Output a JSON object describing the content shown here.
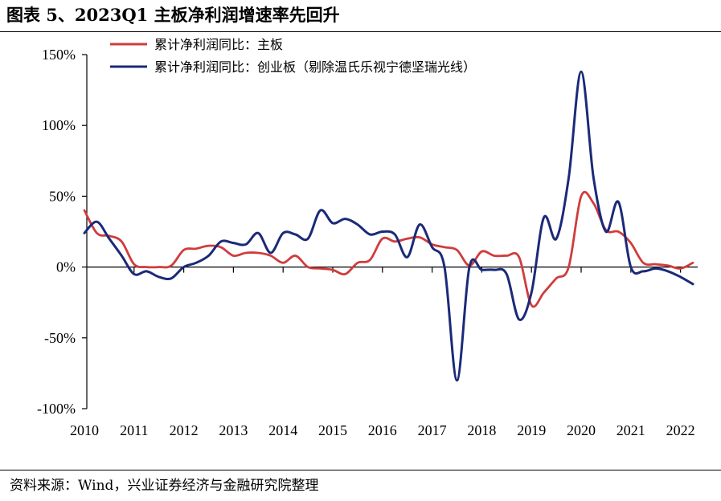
{
  "figure": {
    "title": "图表 5、2023Q1 主板净利润增速率先回升",
    "source": "资料来源：Wind，兴业证券经济与金融研究院整理"
  },
  "chart_data": {
    "type": "line",
    "title": "",
    "xlabel": "",
    "ylabel": "",
    "x_ticks": [
      "2010",
      "2011",
      "2012",
      "2013",
      "2014",
      "2015",
      "2016",
      "2017",
      "2018",
      "2019",
      "2020",
      "2021",
      "2022"
    ],
    "y_ticks": [
      "150%",
      "100%",
      "50%",
      "0%",
      "-50%",
      "-100%"
    ],
    "y_tick_values": [
      150,
      100,
      50,
      0,
      -50,
      -100
    ],
    "ylim": [
      -100,
      150
    ],
    "xlim": [
      2010,
      2023.2
    ],
    "grid": false,
    "legend_position": "top",
    "series": [
      {
        "name": "累计净利润同比：主板",
        "color": "#d03c3c",
        "x": [
          2010.0,
          2010.25,
          2010.5,
          2010.75,
          2011.0,
          2011.25,
          2011.5,
          2011.75,
          2012.0,
          2012.25,
          2012.5,
          2012.75,
          2013.0,
          2013.25,
          2013.5,
          2013.75,
          2014.0,
          2014.25,
          2014.5,
          2014.75,
          2015.0,
          2015.25,
          2015.5,
          2015.75,
          2016.0,
          2016.25,
          2016.5,
          2016.75,
          2017.0,
          2017.25,
          2017.5,
          2017.75,
          2018.0,
          2018.25,
          2018.5,
          2018.75,
          2019.0,
          2019.25,
          2019.5,
          2019.75,
          2020.0,
          2020.25,
          2020.5,
          2020.75,
          2021.0,
          2021.25,
          2021.5,
          2021.75,
          2022.0,
          2022.25
        ],
        "values": [
          40,
          24,
          22,
          18,
          2,
          0,
          0,
          1,
          12,
          13,
          15,
          14,
          8,
          10,
          10,
          8,
          3,
          8,
          0,
          -1,
          -2,
          -5,
          3,
          5,
          20,
          18,
          20,
          21,
          16,
          14,
          12,
          1,
          11,
          8,
          8,
          7,
          -27,
          -18,
          -8,
          0,
          50,
          45,
          26,
          25,
          17,
          3,
          2,
          1,
          -1,
          3
        ]
      },
      {
        "name": "累计净利润同比：创业板（剔除温氏乐视宁德坚瑞光线）",
        "color": "#1b2a78",
        "x": [
          2010.0,
          2010.25,
          2010.5,
          2010.75,
          2011.0,
          2011.25,
          2011.5,
          2011.75,
          2012.0,
          2012.25,
          2012.5,
          2012.75,
          2013.0,
          2013.25,
          2013.5,
          2013.75,
          2014.0,
          2014.25,
          2014.5,
          2014.75,
          2015.0,
          2015.25,
          2015.5,
          2015.75,
          2016.0,
          2016.25,
          2016.5,
          2016.75,
          2017.0,
          2017.25,
          2017.5,
          2017.75,
          2018.0,
          2018.25,
          2018.5,
          2018.75,
          2019.0,
          2019.25,
          2019.5,
          2019.75,
          2020.0,
          2020.25,
          2020.5,
          2020.75,
          2021.0,
          2021.25,
          2021.5,
          2021.75,
          2022.0,
          2022.25
        ],
        "values": [
          24,
          32,
          20,
          8,
          -5,
          -3,
          -7,
          -8,
          0,
          3,
          8,
          18,
          17,
          16,
          24,
          10,
          24,
          23,
          20,
          40,
          31,
          34,
          30,
          23,
          25,
          23,
          7,
          30,
          14,
          0,
          -80,
          0,
          -2,
          -2,
          -5,
          -37,
          -18,
          35,
          20,
          63,
          138,
          63,
          25,
          46,
          0,
          -3,
          -1,
          -3,
          -7,
          -12
        ]
      }
    ]
  }
}
